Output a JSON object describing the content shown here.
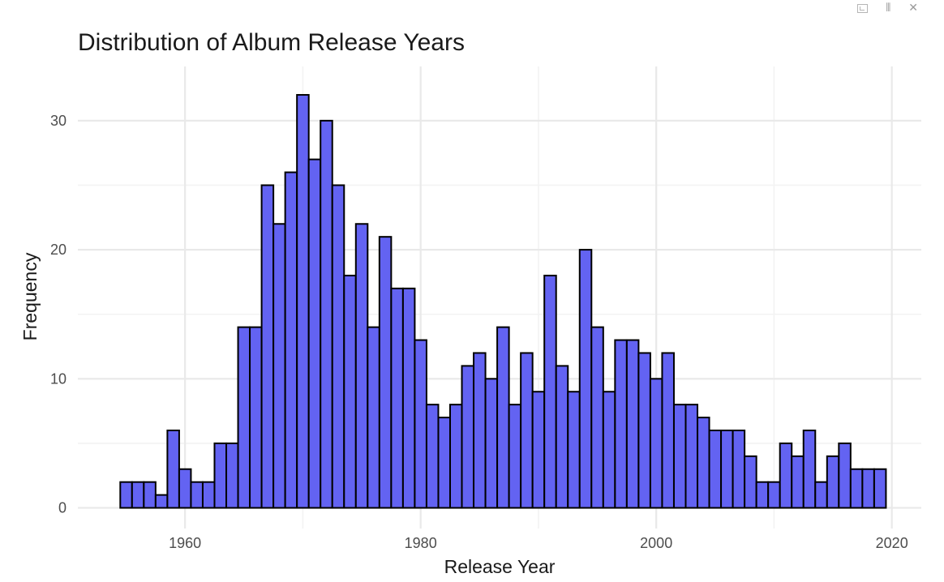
{
  "window_controls": {
    "popout_icon": "popout-icon",
    "collapse_icon": "collapse-icon",
    "collapse_glyph": "⫴",
    "close_icon": "close-icon",
    "close_glyph": "✕"
  },
  "chart_data": {
    "type": "bar",
    "subtype": "histogram",
    "title": "Distribution of Album Release Years",
    "xlabel": "Release Year",
    "ylabel": "Frequency",
    "bin_width": 1,
    "x": [
      1955,
      1956,
      1957,
      1958,
      1959,
      1960,
      1961,
      1962,
      1963,
      1964,
      1965,
      1966,
      1967,
      1968,
      1969,
      1970,
      1971,
      1972,
      1973,
      1974,
      1975,
      1976,
      1977,
      1978,
      1979,
      1980,
      1981,
      1982,
      1983,
      1984,
      1985,
      1986,
      1987,
      1988,
      1989,
      1990,
      1991,
      1992,
      1993,
      1994,
      1995,
      1996,
      1997,
      1998,
      1999,
      2000,
      2001,
      2002,
      2003,
      2004,
      2005,
      2006,
      2007,
      2008,
      2009,
      2010,
      2011,
      2012,
      2013,
      2014,
      2015,
      2016,
      2017,
      2018,
      2019
    ],
    "values": [
      2,
      2,
      2,
      1,
      6,
      3,
      2,
      2,
      5,
      5,
      14,
      14,
      25,
      22,
      26,
      32,
      27,
      30,
      25,
      18,
      22,
      14,
      21,
      17,
      17,
      13,
      8,
      7,
      8,
      11,
      12,
      10,
      14,
      8,
      12,
      9,
      18,
      11,
      9,
      20,
      14,
      9,
      13,
      13,
      12,
      10,
      12,
      8,
      8,
      7,
      6,
      6,
      6,
      4,
      2,
      2,
      5,
      4,
      6,
      2,
      4,
      5,
      3,
      3,
      3
    ],
    "xlim": [
      1950.9,
      2022.5
    ],
    "ylim": [
      -1.6,
      34.2
    ],
    "x_ticks": [
      1960,
      1980,
      2000,
      2020
    ],
    "y_ticks": [
      0,
      10,
      20,
      30
    ],
    "x_tick_labels": [
      "1960",
      "1980",
      "2000",
      "2020"
    ],
    "y_tick_labels": [
      "0",
      "10",
      "20",
      "30"
    ],
    "grid": true,
    "legend": "none",
    "colors": {
      "bar_fill": "#6363f2",
      "bar_outline": "#000000",
      "grid": "#e9e9e9",
      "background": "#ffffff"
    }
  }
}
